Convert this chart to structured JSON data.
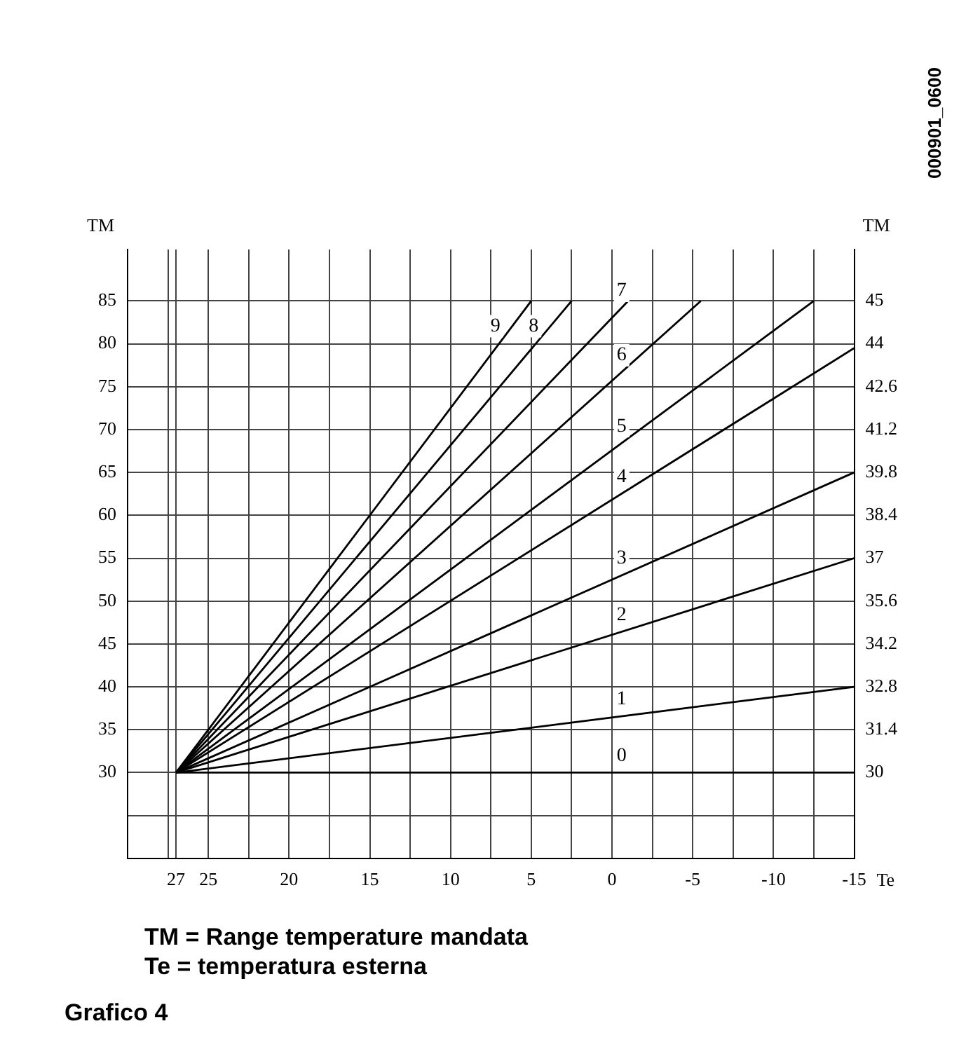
{
  "chart_data": {
    "type": "line",
    "xlabel": "Te",
    "ylabel": "TM",
    "y2label": "TM",
    "annotations": [
      "000901_0600",
      "TM = Range temperature mandata",
      "Te = temperatura esterna",
      "Grafico 4"
    ],
    "series": [
      {
        "name": "0",
        "color": "#000000",
        "x": [
          27,
          -15
        ],
        "values": [
          30,
          30
        ]
      },
      {
        "name": "1",
        "color": "#000000",
        "x": [
          27,
          -15
        ],
        "values": [
          30,
          40
        ]
      },
      {
        "name": "2",
        "color": "#000000",
        "x": [
          27,
          -15
        ],
        "values": [
          30,
          55
        ]
      },
      {
        "name": "3",
        "color": "#000000",
        "x": [
          27,
          -15
        ],
        "values": [
          30,
          65
        ]
      },
      {
        "name": "4",
        "color": "#000000",
        "x": [
          27,
          -15
        ],
        "values": [
          30,
          79.5
        ]
      },
      {
        "name": "5",
        "color": "#000000",
        "x": [
          27,
          -12.5
        ],
        "values": [
          30,
          85
        ]
      },
      {
        "name": "6",
        "color": "#000000",
        "x": [
          27,
          -5.5
        ],
        "values": [
          30,
          85
        ]
      },
      {
        "name": "7",
        "color": "#000000",
        "x": [
          27,
          -1
        ],
        "values": [
          30,
          85
        ]
      },
      {
        "name": "8",
        "color": "#000000",
        "x": [
          27,
          2.5
        ],
        "values": [
          30,
          85
        ]
      },
      {
        "name": "9",
        "color": "#000000",
        "x": [
          27,
          5
        ],
        "values": [
          30,
          85
        ]
      }
    ],
    "xlim": [
      30,
      -15
    ],
    "xticks": [
      27,
      {
        "value": 27.5,
        "label": null
      },
      25,
      {
        "value": 22.5,
        "label": null
      },
      20,
      {
        "value": 17.5,
        "label": null
      },
      15,
      {
        "value": 12.5,
        "label": null
      },
      10,
      {
        "value": 7.5,
        "label": null
      },
      5,
      {
        "value": 2.5,
        "label": null
      },
      0,
      {
        "value": -2.5,
        "label": null
      },
      -5,
      {
        "value": -7.5,
        "label": null
      },
      -10,
      {
        "value": -12.5,
        "label": null
      },
      -15
    ],
    "ylim": [
      20,
      91
    ],
    "yticks": [
      {
        "value": 25,
        "label": null
      },
      30,
      35,
      40,
      45,
      50,
      55,
      60,
      65,
      70,
      75,
      80,
      85
    ],
    "y2lim": [
      27.2,
      47.08
    ],
    "y2ticks": [
      30,
      31.4,
      32.8,
      34.2,
      35.6,
      37,
      38.4,
      39.8,
      41.2,
      42.6,
      44,
      {
        "value": 45.4,
        "label": "45"
      }
    ],
    "grid": true,
    "legend": false,
    "marker": "none",
    "line_style": "solid"
  }
}
